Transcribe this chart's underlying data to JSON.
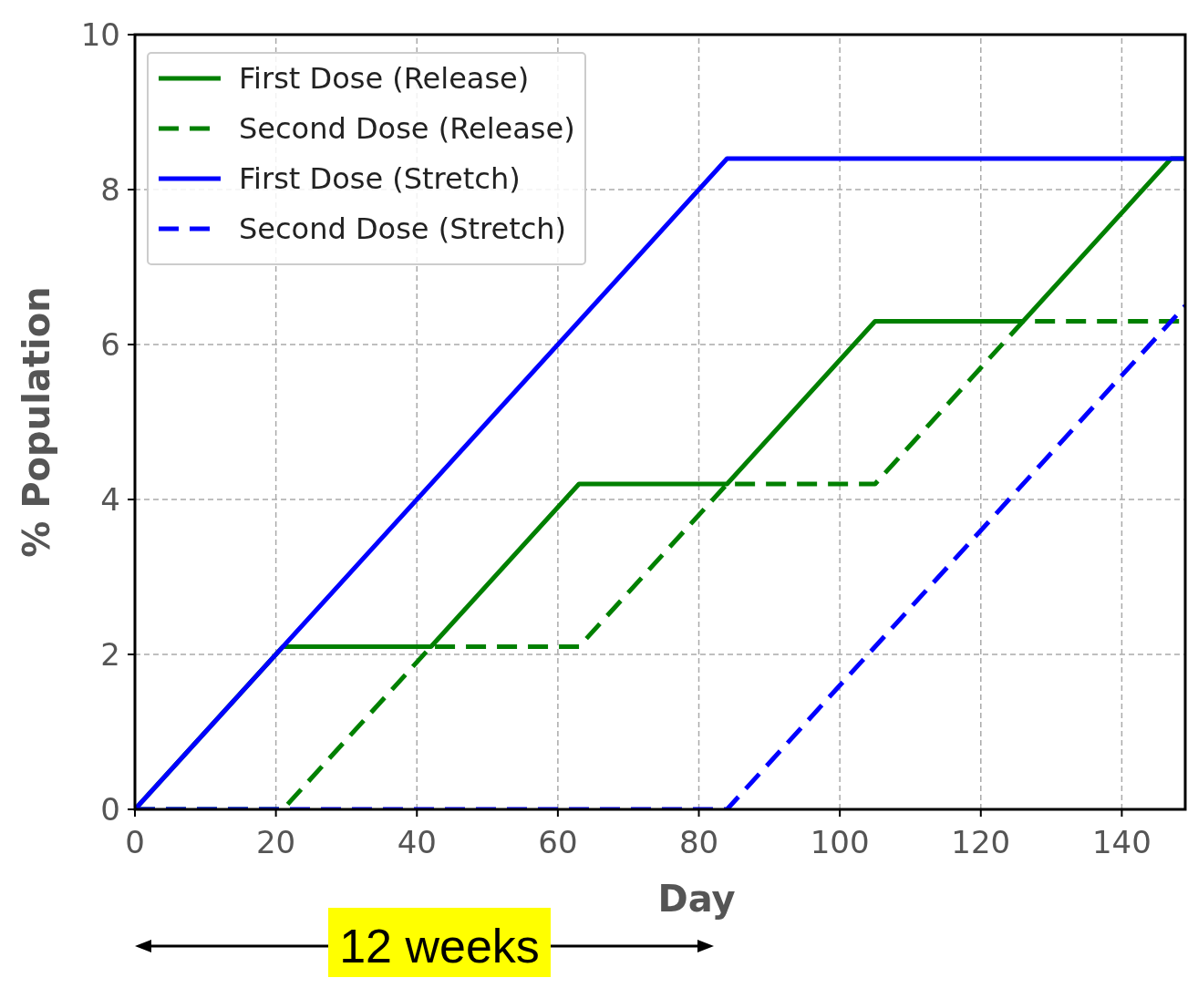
{
  "chart_data": {
    "type": "line",
    "xlabel": "Day",
    "ylabel": "% Population",
    "xlim": [
      0,
      149
    ],
    "ylim": [
      0,
      10
    ],
    "xticks": [
      0,
      20,
      40,
      60,
      80,
      100,
      120,
      140
    ],
    "yticks": [
      0,
      2,
      4,
      6,
      8,
      10
    ],
    "grid": true,
    "legend": "top left",
    "annotations": [
      "12 weeks"
    ],
    "series": [
      {
        "name": "First Dose (Release)",
        "color": "#008000",
        "line_style": "solid",
        "x": [
          0,
          21,
          42,
          63,
          84,
          105,
          126,
          147,
          149
        ],
        "values": [
          0,
          2.1,
          2.1,
          4.2,
          4.2,
          6.3,
          6.3,
          8.4,
          8.4
        ]
      },
      {
        "name": "Second Dose (Release)",
        "color": "#008000",
        "line_style": "dashed",
        "x": [
          0,
          21,
          42,
          63,
          84,
          105,
          126,
          149
        ],
        "values": [
          0,
          0,
          2.1,
          2.1,
          4.2,
          4.2,
          6.3,
          6.3
        ]
      },
      {
        "name": "First Dose (Stretch)",
        "color": "#0000ff",
        "line_style": "solid",
        "x": [
          0,
          84,
          149
        ],
        "values": [
          0,
          8.4,
          8.4
        ]
      },
      {
        "name": "Second Dose (Stretch)",
        "color": "#0000ff",
        "line_style": "dashed",
        "x": [
          0,
          84,
          149
        ],
        "values": [
          0,
          0,
          6.5
        ]
      }
    ]
  }
}
